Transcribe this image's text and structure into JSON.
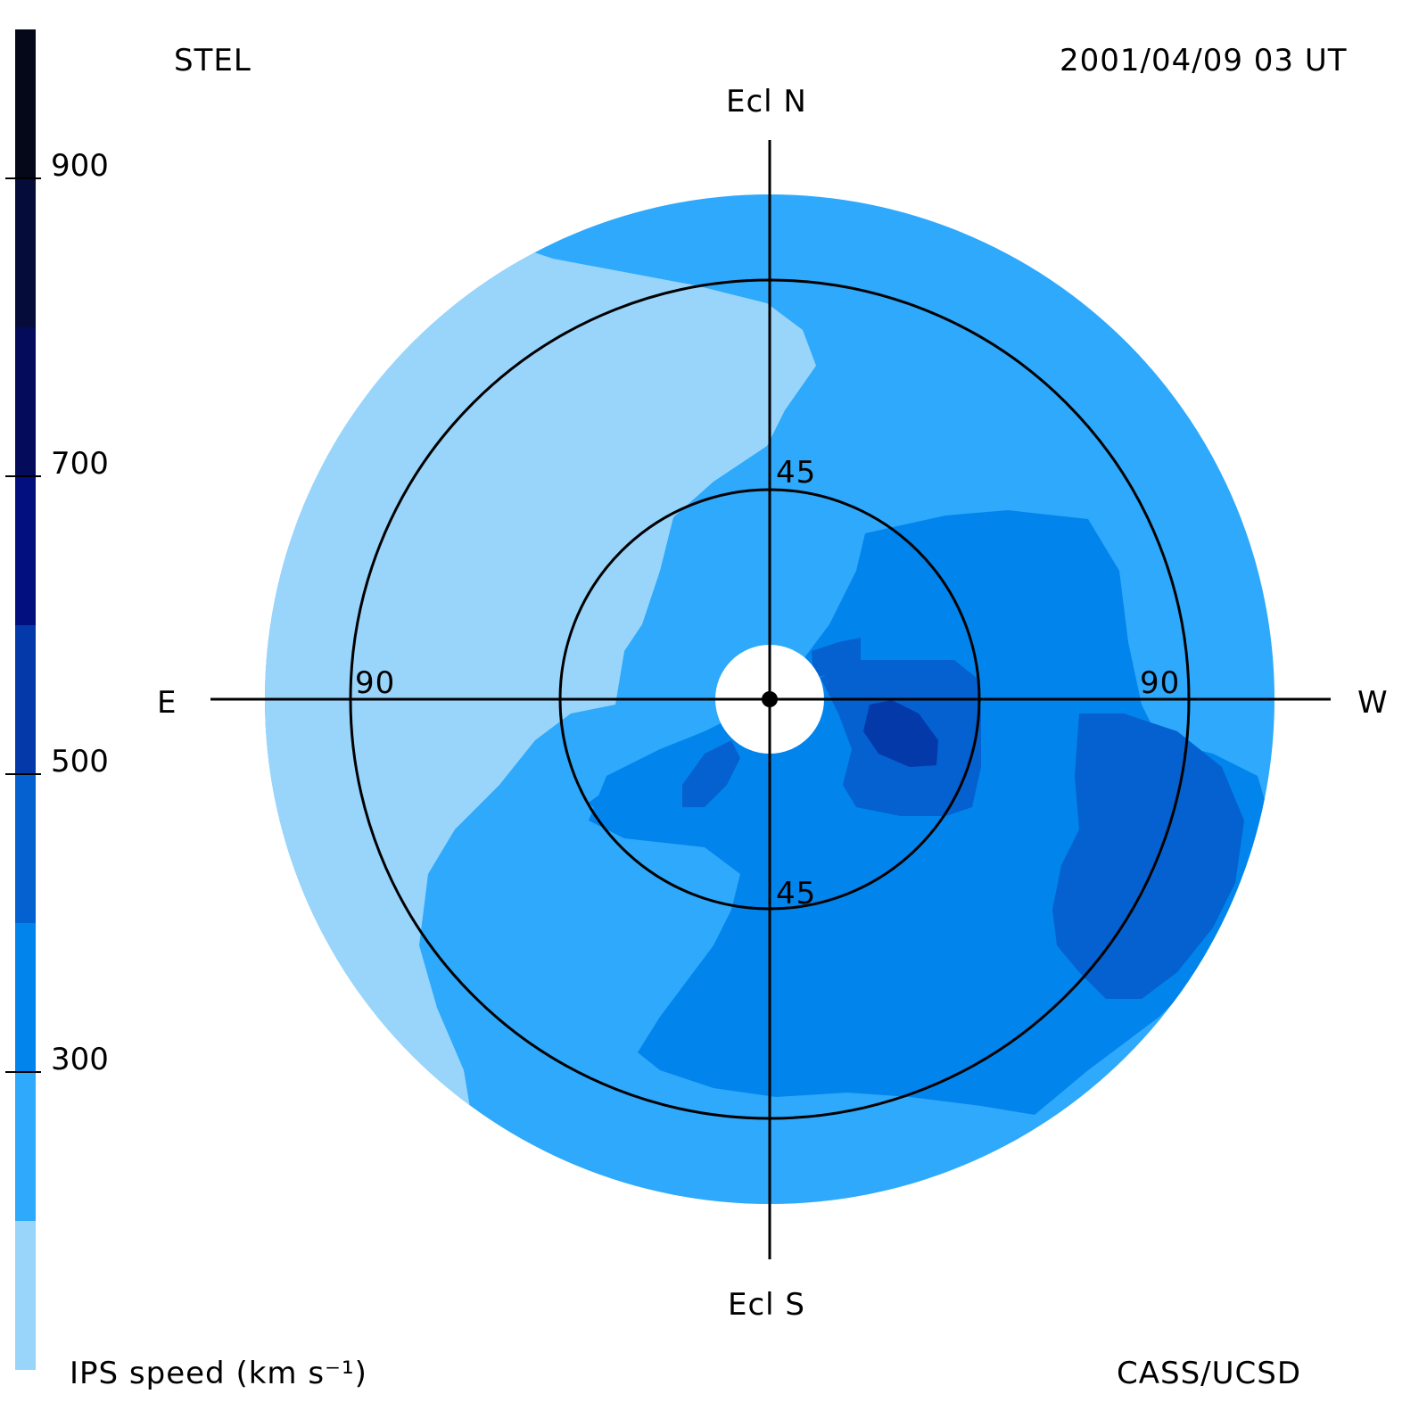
{
  "header": {
    "source": "STEL",
    "datetime": "2001/04/09 03 UT"
  },
  "compass": {
    "north": "Ecl N",
    "south": "Ecl S",
    "east": "E",
    "west": "W"
  },
  "rings": {
    "inner_north": "45",
    "inner_south": "45",
    "outer_east": "90",
    "outer_west": "90"
  },
  "colorbar": {
    "title": "IPS speed (km s⁻¹)",
    "ticks": [
      "900",
      "700",
      "500",
      "300"
    ],
    "colors": [
      "#99d5fb",
      "#2ea9fb",
      "#0284ed",
      "#0461cf",
      "#0339a8",
      "#020f7f",
      "#030b5a",
      "#050c3a",
      "#050818"
    ]
  },
  "footer": {
    "credit": "CASS/UCSD"
  },
  "map_colors": {
    "level_200": "#99d5fb",
    "level_250": "#2ea9fb",
    "level_350": "#0284ed",
    "level_450": "#0461cf",
    "level_550": "#0339a8"
  }
}
